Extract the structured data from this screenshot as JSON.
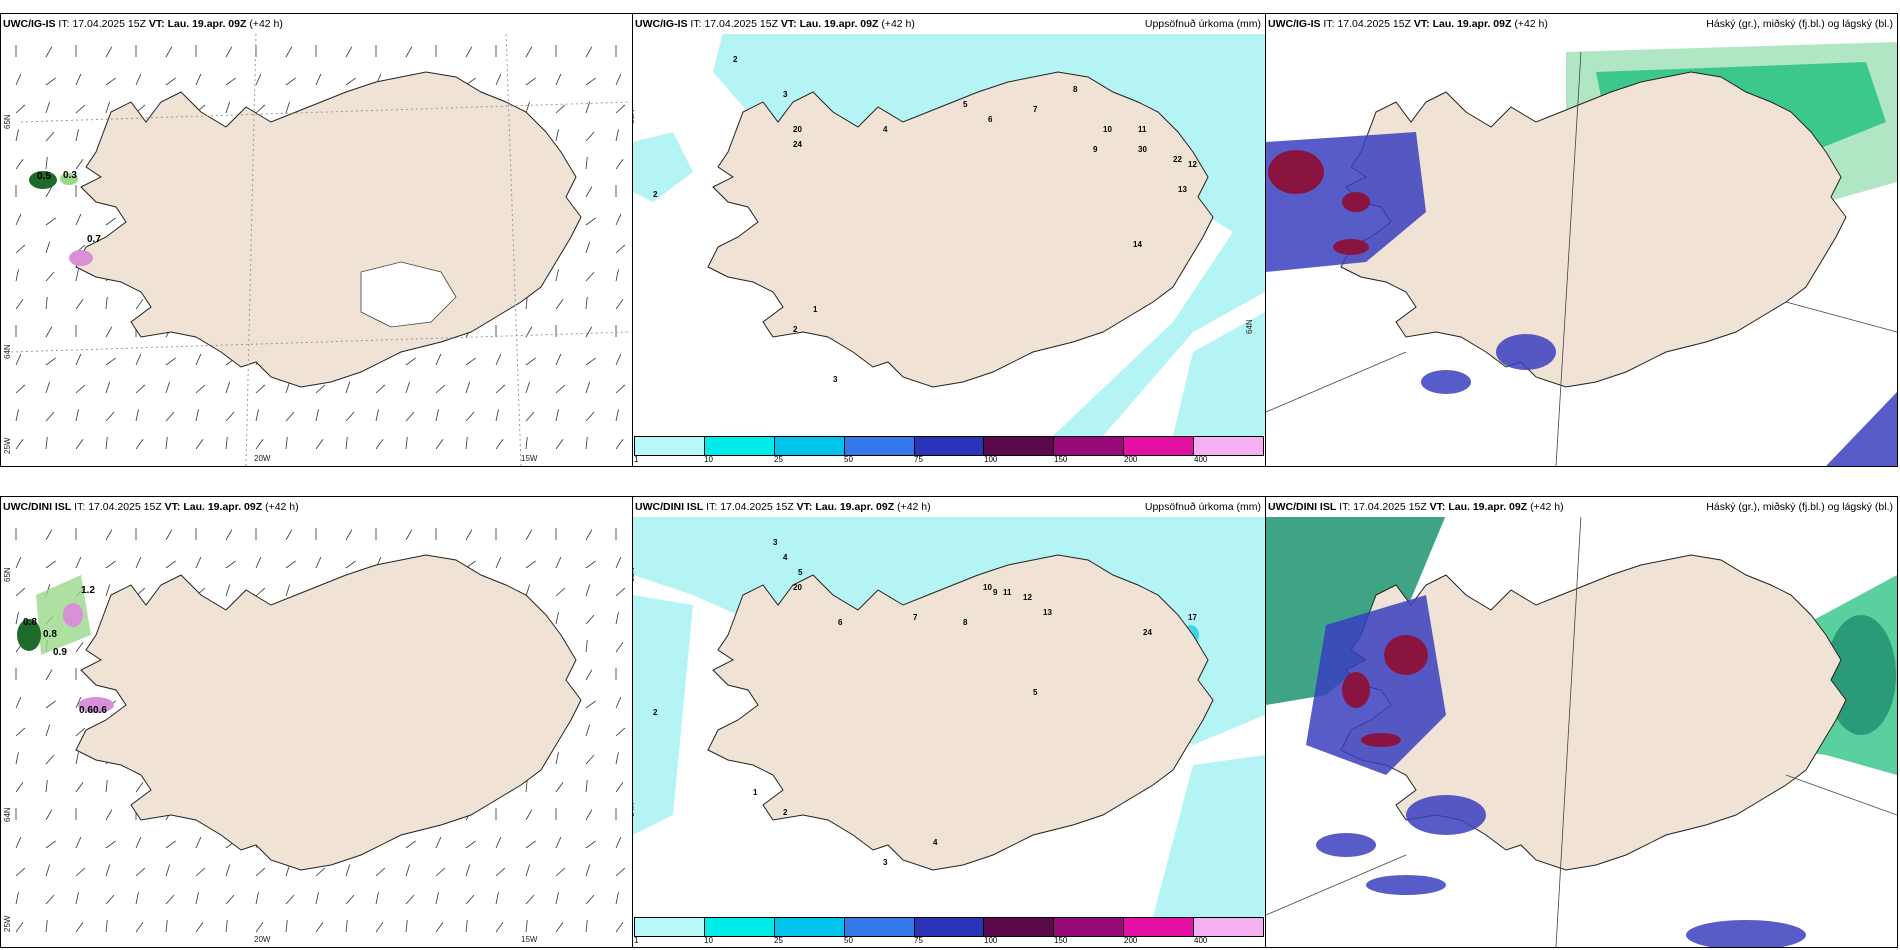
{
  "panels": {
    "p1": {
      "model": "UWC/IG-IS",
      "it_label": "IT:",
      "it": "17.04.2025 15Z",
      "vt_label": "VT:",
      "vt": "Lau. 19.apr. 09Z",
      "lead": "(+42 h)",
      "right_title": ""
    },
    "p2": {
      "model": "UWC/IG-IS",
      "it_label": "IT:",
      "it": "17.04.2025 15Z",
      "vt_label": "VT:",
      "vt": "Lau. 19.apr. 09Z",
      "lead": "(+42 h)",
      "right_title": "Uppsöfnuð úrkoma (mm)"
    },
    "p3": {
      "model": "UWC/IG-IS",
      "it_label": "IT:",
      "it": "17.04.2025 15Z",
      "vt_label": "VT:",
      "vt": "Lau. 19.apr. 09Z",
      "lead": "(+42 h)",
      "right_title": "Háský (gr.), miðský (fj.bl.) og lágský (bl.)"
    },
    "p4": {
      "model": "UWC/DINI ISL",
      "it_label": "IT:",
      "it": "17.04.2025 15Z",
      "vt_label": "VT:",
      "vt": "Lau. 19.apr. 09Z",
      "lead": "(+42 h)",
      "right_title": ""
    },
    "p5": {
      "model": "UWC/DINI ISL",
      "it_label": "IT:",
      "it": "17.04.2025 15Z",
      "vt_label": "VT:",
      "vt": "Lau. 19.apr. 09Z",
      "lead": "(+42 h)",
      "right_title": "Uppsöfnuð úrkoma (mm)"
    },
    "p6": {
      "model": "UWC/DINI ISL",
      "it_label": "IT:",
      "it": "17.04.2025 15Z",
      "vt_label": "VT:",
      "vt": "Lau. 19.apr. 09Z",
      "lead": "(+42 h)",
      "right_title": "Háský (gr.), miðský (fj.bl.) og lágský (bl.)"
    }
  },
  "axis_ticks": {
    "lon_20": "20W",
    "lon_15": "15W",
    "lon_25": "25W",
    "lat_65": "65N",
    "lat_64": "64N"
  },
  "colorbar": {
    "colors": [
      "#b8f8f8",
      "#00ece8",
      "#00c4ec",
      "#3478ec",
      "#2a34b8",
      "#5a0a4a",
      "#980a78",
      "#e410a4",
      "#f4b0f0"
    ],
    "labels": [
      "1",
      "10",
      "25",
      "50",
      "75",
      "100",
      "150",
      "200",
      "400"
    ]
  },
  "colors": {
    "land": "#f0e2d4",
    "precip": "#b4f4f4",
    "precip_strong": "#3ed6e6",
    "high_cloud": "#3cc88c",
    "mid_cloud": "#3a40c0",
    "low_cloud": "#8a1440",
    "wind_precip": "#1e8a3a"
  },
  "precip_values_top": [
    "2",
    "2",
    "3",
    "4",
    "5",
    "6",
    "7",
    "8",
    "9",
    "10",
    "11",
    "12",
    "13",
    "14",
    "22",
    "30",
    "20",
    "24",
    "1",
    "2",
    "3"
  ],
  "precip_values_bottom": [
    "2",
    "3",
    "4",
    "5",
    "6",
    "7",
    "8",
    "9",
    "10",
    "11",
    "12",
    "13",
    "17",
    "20",
    "24",
    "1",
    "2",
    "3",
    "4",
    "5"
  ],
  "wind_values_top": [
    "0.5",
    "0.3",
    "0.7"
  ],
  "wind_values_bottom": [
    "1.2",
    "0.8",
    "0.8",
    "0.9",
    "0.6",
    "0.6"
  ]
}
